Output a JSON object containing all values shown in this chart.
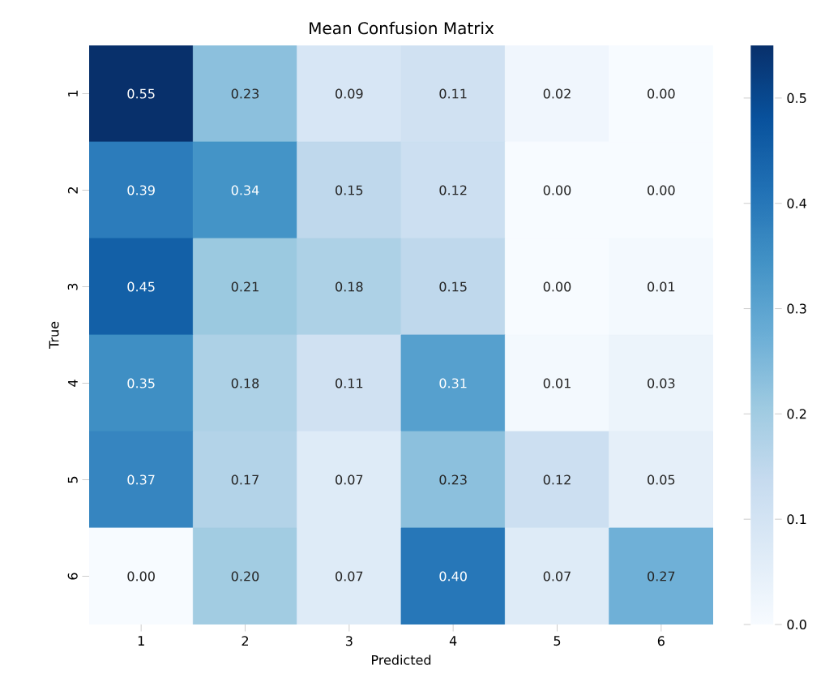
{
  "chart_data": {
    "type": "heatmap",
    "title": "Mean Confusion Matrix",
    "xlabel": "Predicted",
    "ylabel": "True",
    "categories": [
      "1",
      "2",
      "3",
      "4",
      "5",
      "6"
    ],
    "y_categories": [
      "1",
      "2",
      "3",
      "4",
      "5",
      "6"
    ],
    "cells": [
      [
        0.55,
        0.23,
        0.09,
        0.11,
        0.02,
        0.0
      ],
      [
        0.39,
        0.34,
        0.15,
        0.12,
        0.0,
        0.0
      ],
      [
        0.45,
        0.21,
        0.18,
        0.15,
        0.0,
        0.01
      ],
      [
        0.35,
        0.18,
        0.11,
        0.31,
        0.01,
        0.03
      ],
      [
        0.37,
        0.17,
        0.07,
        0.23,
        0.12,
        0.05
      ],
      [
        0.0,
        0.2,
        0.07,
        0.4,
        0.07,
        0.27
      ]
    ],
    "cell_labels": [
      [
        "0.55",
        "0.23",
        "0.09",
        "0.11",
        "0.02",
        "0.00"
      ],
      [
        "0.39",
        "0.34",
        "0.15",
        "0.12",
        "0.00",
        "0.00"
      ],
      [
        "0.45",
        "0.21",
        "0.18",
        "0.15",
        "0.00",
        "0.01"
      ],
      [
        "0.35",
        "0.18",
        "0.11",
        "0.31",
        "0.01",
        "0.03"
      ],
      [
        "0.37",
        "0.17",
        "0.07",
        "0.23",
        "0.12",
        "0.05"
      ],
      [
        "0.00",
        "0.20",
        "0.07",
        "0.40",
        "0.07",
        "0.27"
      ]
    ],
    "clim": [
      0,
      0.55
    ],
    "cticks": [
      {
        "value": 0,
        "label": "0.0"
      },
      {
        "value": 0.1,
        "label": "0.1"
      },
      {
        "value": 0.2,
        "label": "0.2"
      },
      {
        "value": 0.3,
        "label": "0.3"
      },
      {
        "value": 0.4,
        "label": "0.4"
      },
      {
        "value": 0.5,
        "label": "0.5"
      }
    ]
  }
}
